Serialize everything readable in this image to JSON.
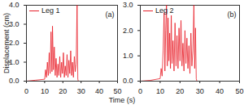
{
  "chart_data": [
    {
      "type": "line",
      "annotation": "(a)",
      "ylabel": "Displacement (cm)",
      "xlabel": "Time (s)",
      "xlim": [
        0,
        50
      ],
      "xticks": [
        0,
        10,
        20,
        30,
        40,
        50
      ],
      "ylim": [
        0,
        4
      ],
      "yticks": [
        0,
        1,
        2,
        3,
        4
      ],
      "legend": "top-left",
      "x": [
        0,
        5,
        10,
        10.5,
        11,
        11.5,
        12,
        12.5,
        13,
        13.5,
        14,
        14.3,
        14.8,
        15.3,
        15.8,
        16.3,
        16.8,
        17.3,
        17.8,
        18.3,
        18.8,
        19.3,
        19.8,
        20.3,
        20.8,
        21.3,
        21.8,
        22.3,
        22.8,
        23.3,
        23.8,
        24.3,
        24.8,
        25.3,
        25.8,
        26.3,
        26.8,
        27.3,
        27.8,
        28.2,
        28.5
      ],
      "series": [
        {
          "name": "Leg 1",
          "color": "#e8202a",
          "values": [
            0,
            0.05,
            0.1,
            0.6,
            0.2,
            1.0,
            0.3,
            1.5,
            0.4,
            2.6,
            0.5,
            2.9,
            0.6,
            1.8,
            0.3,
            1.2,
            0.2,
            0.9,
            0.3,
            1.3,
            0.2,
            1.0,
            0.4,
            1.5,
            0.2,
            0.8,
            0.3,
            1.4,
            0.2,
            1.1,
            0.4,
            1.6,
            0.3,
            1.0,
            0.2,
            1.3,
            0.5,
            0.9,
            4.0,
            0.1,
            0
          ]
        }
      ]
    },
    {
      "type": "line",
      "annotation": "(b)",
      "xlim": [
        0,
        50
      ],
      "xticks": [
        0,
        10,
        20,
        30,
        40,
        50
      ],
      "ylim": [
        0,
        3
      ],
      "yticks": [
        0,
        1,
        2,
        3
      ],
      "legend": "top-left",
      "x": [
        0,
        5,
        10,
        10.5,
        11,
        11.5,
        12,
        12.4,
        12.8,
        13.2,
        13.6,
        14,
        14.4,
        14.8,
        15.2,
        15.6,
        16,
        16.5,
        17,
        17.5,
        18,
        18.5,
        19,
        19.5,
        20,
        20.5,
        21,
        21.5,
        22,
        22.5,
        23,
        23.5,
        24,
        24.5,
        25,
        25.5,
        26,
        26.5,
        27,
        27.4,
        27.8,
        28.2,
        28.5
      ],
      "series": [
        {
          "name": "Leg 2",
          "color": "#e8202a",
          "values": [
            0,
            0.03,
            0.1,
            0.5,
            0.2,
            1.2,
            2.7,
            0.4,
            2.0,
            3.0,
            0.6,
            2.5,
            0.8,
            1.9,
            0.5,
            2.6,
            0.7,
            1.6,
            0.4,
            2.3,
            0.6,
            1.8,
            0.5,
            2.1,
            0.8,
            2.4,
            0.6,
            1.5,
            0.4,
            2.0,
            0.7,
            1.7,
            0.5,
            1.4,
            0.3,
            1.9,
            0.6,
            1.2,
            3.0,
            0.5,
            2.1,
            0.1,
            0
          ]
        }
      ]
    }
  ]
}
